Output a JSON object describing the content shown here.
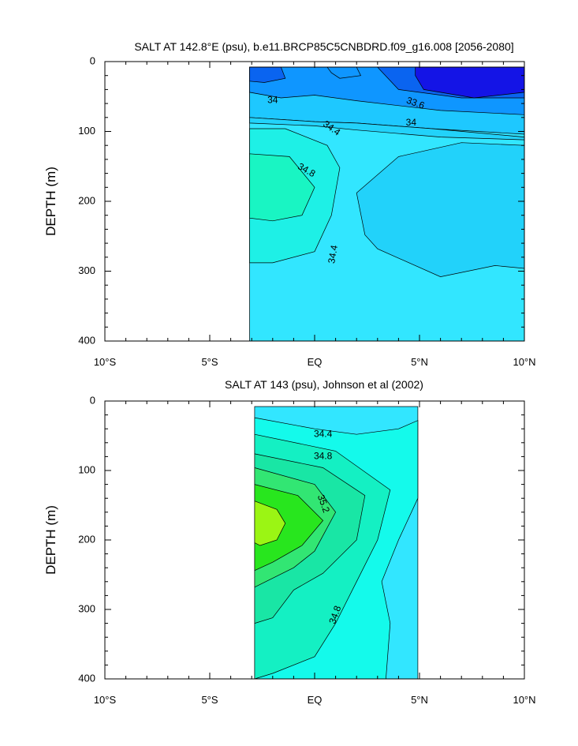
{
  "chart_data": [
    {
      "type": "heatmap",
      "title": "SALT AT 142.8°E (psu), b.e11.BRCP85C5CNBDRD.f09_g16.008 [2056-2080]",
      "ylabel": "DEPTH (m)",
      "xlabel": "",
      "x_tick_labels": [
        "10°S",
        "5°S",
        "EQ",
        "5°N",
        "10°N"
      ],
      "x_ticks": [
        -10,
        -5,
        0,
        5,
        10
      ],
      "y_tick_labels": [
        "0",
        "100",
        "200",
        "300",
        "400"
      ],
      "y_ticks": [
        0,
        100,
        200,
        300,
        400
      ],
      "xlim": [
        -10,
        10
      ],
      "ylim": [
        400,
        0
      ],
      "data_extent_x": [
        -3.1,
        10
      ],
      "data_extent_y": [
        400,
        0
      ],
      "contour_labels": [
        "34",
        "33.6",
        "34",
        "34.4",
        "34.8",
        "34.4"
      ],
      "fill_colors": {
        "33.2-33.6": "#1414e6",
        "33.6-33.8": "#0a64f0",
        "33.8-34.0": "#0f96ff",
        "34.0-34.2": "#1ec8ff",
        "34.2-34.4": "#22d2fa",
        "34.4-34.6": "#32e6ff",
        "34.6-34.8": "#1ef0e6",
        "34.8-35.0": "#19f5c3"
      }
    },
    {
      "type": "heatmap",
      "title": "SALT AT 143 (psu), Johnson et al (2002)",
      "ylabel": "DEPTH (m)",
      "xlabel": "",
      "x_tick_labels": [
        "10°S",
        "5°S",
        "EQ",
        "5°N",
        "10°N"
      ],
      "x_ticks": [
        -10,
        -5,
        0,
        5,
        10
      ],
      "y_tick_labels": [
        "0",
        "100",
        "200",
        "300",
        "400"
      ],
      "y_ticks": [
        0,
        100,
        200,
        300,
        400
      ],
      "xlim": [
        -10,
        10
      ],
      "ylim": [
        400,
        0
      ],
      "data_extent_x": [
        -2.9,
        5
      ],
      "data_extent_y": [
        400,
        0
      ],
      "contour_labels": [
        "34.4",
        "34.8",
        "35.2",
        "34.8"
      ],
      "fill_colors": {
        "34.2-34.4": "#32e6ff",
        "34.4-34.6": "#14faeb",
        "34.6-34.8": "#14f0c3",
        "34.8-35.0": "#19e6a5",
        "35.0-35.2": "#32e673",
        "35.2-35.4": "#28e61e",
        "35.4-35.6": "#9bf514"
      }
    }
  ]
}
